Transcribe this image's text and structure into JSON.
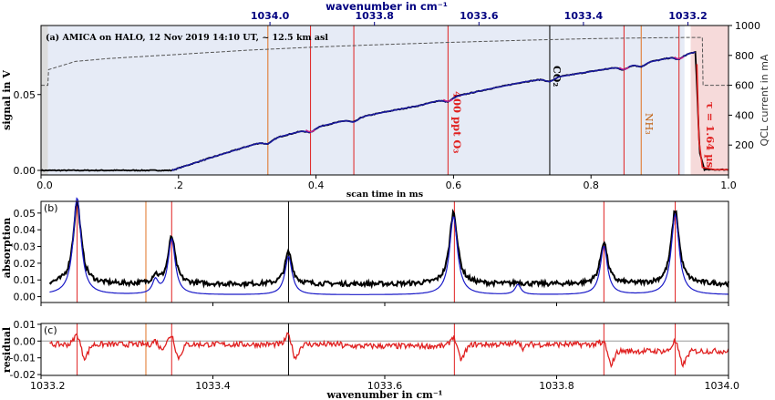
{
  "chart_data": [
    {
      "panel": "(a)",
      "type": "line",
      "title": "AMICA on HALO, 12 Nov 2019 14:10 UT, ~ 12.5 km asl",
      "xlabel": "scan time in ms",
      "ylabel": "signal in V",
      "y2label": "QCL current in mA",
      "top_axis_label": "wavenumber in cm⁻¹",
      "top_ticks": [
        "1034.0",
        "1033.8",
        "1033.6",
        "1033.4",
        "1033.2"
      ],
      "top_tick_at_ms": [
        0.333,
        0.485,
        0.637,
        0.789,
        0.941
      ],
      "x_ticks": [
        "0.0",
        ".2",
        "0.4",
        "0.6",
        "0.8",
        "1.0"
      ],
      "x_tick_values": [
        0.0,
        0.2,
        0.4,
        0.6,
        0.8,
        1.0
      ],
      "y_ticks": [
        "0.00",
        "0.05"
      ],
      "y_tick_values": [
        0.0,
        0.05
      ],
      "y2_ticks": [
        "200",
        "400",
        "600",
        "800",
        "1000"
      ],
      "y2_tick_values": [
        200,
        400,
        600,
        800,
        1000
      ],
      "xlim": [
        0.0,
        1.0
      ],
      "ylim": [
        -0.003,
        0.0955
      ],
      "y2lim": [
        0,
        1000
      ],
      "shaded_region_ms": [
        0.002,
        0.936
      ],
      "offset_region_ms": [
        0.945,
        1.0
      ],
      "signal_ms": [
        0.0,
        0.19,
        0.25,
        0.3,
        0.35,
        0.4,
        0.45,
        0.5,
        0.55,
        0.6,
        0.65,
        0.7,
        0.75,
        0.8,
        0.85,
        0.9,
        0.95,
        0.952,
        0.958,
        0.965,
        1.0
      ],
      "signal_V": [
        0.0,
        0.0,
        0.0088,
        0.0158,
        0.0225,
        0.0284,
        0.0337,
        0.0385,
        0.0427,
        0.0485,
        0.0535,
        0.0581,
        0.0615,
        0.0652,
        0.0688,
        0.0728,
        0.0778,
        0.0778,
        0.012,
        0.0005,
        0.0005
      ],
      "current_ms": [
        0.0,
        0.01,
        0.011,
        0.05,
        0.1,
        0.2,
        0.3,
        0.4,
        0.5,
        0.6,
        0.7,
        0.8,
        0.9,
        0.95,
        0.962,
        0.963,
        1.0
      ],
      "current_mA": [
        600,
        600,
        705,
        760,
        780,
        807,
        835,
        856,
        873,
        888,
        901,
        912,
        918,
        920,
        920,
        600,
        600
      ],
      "lines": [
        {
          "ms": 0.33,
          "color": "#e07020"
        },
        {
          "ms": 0.392,
          "color": "#e02020"
        },
        {
          "ms": 0.455,
          "color": "#e02020"
        },
        {
          "ms": 0.592,
          "color": "#e02020",
          "label": "400 ppt O₃"
        },
        {
          "ms": 0.74,
          "color": "#000000",
          "label": "CO₂"
        },
        {
          "ms": 0.848,
          "color": "#e02020"
        },
        {
          "ms": 0.873,
          "color": "#e07020",
          "label": "NH₃"
        },
        {
          "ms": 0.928,
          "color": "#e02020"
        }
      ],
      "annotation": "τ = 1.64 µs",
      "colors": {
        "measured": "#000000",
        "fit": "#1a1aa0",
        "current": "#555555",
        "dip": "#cc2288"
      }
    },
    {
      "panel": "(b)",
      "type": "line",
      "xlabel": "",
      "ylabel": "absorption",
      "xlim": [
        1033.2,
        1034.0
      ],
      "ylim": [
        -0.0035,
        0.057
      ],
      "y_ticks": [
        "0.00",
        "0.01",
        "0.02",
        "0.03",
        "0.04",
        "0.05"
      ],
      "y_tick_values": [
        0.0,
        0.01,
        0.02,
        0.03,
        0.04,
        0.05
      ],
      "baseline_measured": 0.0075,
      "baseline_fit": 0.001,
      "peaks": [
        {
          "x": 1033.242,
          "measured": 0.052,
          "fit": 0.058,
          "width": 0.0055
        },
        {
          "x": 1033.333,
          "measured": 0.008,
          "fit": 0.008,
          "width": 0.004
        },
        {
          "x": 1033.352,
          "measured": 0.031,
          "fit": 0.033,
          "width": 0.005
        },
        {
          "x": 1033.488,
          "measured": 0.022,
          "fit": 0.023,
          "width": 0.005
        },
        {
          "x": 1033.68,
          "measured": 0.046,
          "fit": 0.047,
          "width": 0.0055
        },
        {
          "x": 1033.755,
          "measured": 0.004,
          "fit": 0.006,
          "width": 0.004
        },
        {
          "x": 1033.855,
          "measured": 0.028,
          "fit": 0.029,
          "width": 0.005
        },
        {
          "x": 1033.938,
          "measured": 0.047,
          "fit": 0.048,
          "width": 0.0055
        }
      ],
      "lines": [
        {
          "x": 1033.242,
          "color": "#e02020"
        },
        {
          "x": 1033.322,
          "color": "#e07020"
        },
        {
          "x": 1033.352,
          "color": "#e02020"
        },
        {
          "x": 1033.488,
          "color": "#000000"
        },
        {
          "x": 1033.681,
          "color": "#e02020"
        },
        {
          "x": 1033.855,
          "color": "#e02020"
        },
        {
          "x": 1033.938,
          "color": "#e02020"
        }
      ]
    },
    {
      "panel": "(c)",
      "type": "line",
      "xlabel": "wavenumber in cm⁻¹",
      "ylabel": "residual",
      "xlim": [
        1033.2,
        1034.0
      ],
      "ylim": [
        -0.0205,
        0.0105
      ],
      "y_ticks": [
        "0.01",
        "0.00",
        "-0.01",
        "-0.02"
      ],
      "y_tick_values": [
        0.01,
        0.0,
        -0.01,
        -0.02
      ],
      "x_ticks": [
        "1033.2",
        "1033.4",
        "1033.6",
        "1033.8",
        "1034.0"
      ],
      "x_tick_values": [
        1033.2,
        1033.4,
        1033.6,
        1033.8,
        1034.0
      ],
      "lines": [
        {
          "x": 1033.242,
          "color": "#e02020"
        },
        {
          "x": 1033.322,
          "color": "#e07020"
        },
        {
          "x": 1033.352,
          "color": "#e02020"
        },
        {
          "x": 1033.488,
          "color": "#000000"
        },
        {
          "x": 1033.681,
          "color": "#e02020"
        },
        {
          "x": 1033.855,
          "color": "#e02020"
        },
        {
          "x": 1033.938,
          "color": "#e02020"
        }
      ],
      "color": "#e02020"
    }
  ]
}
